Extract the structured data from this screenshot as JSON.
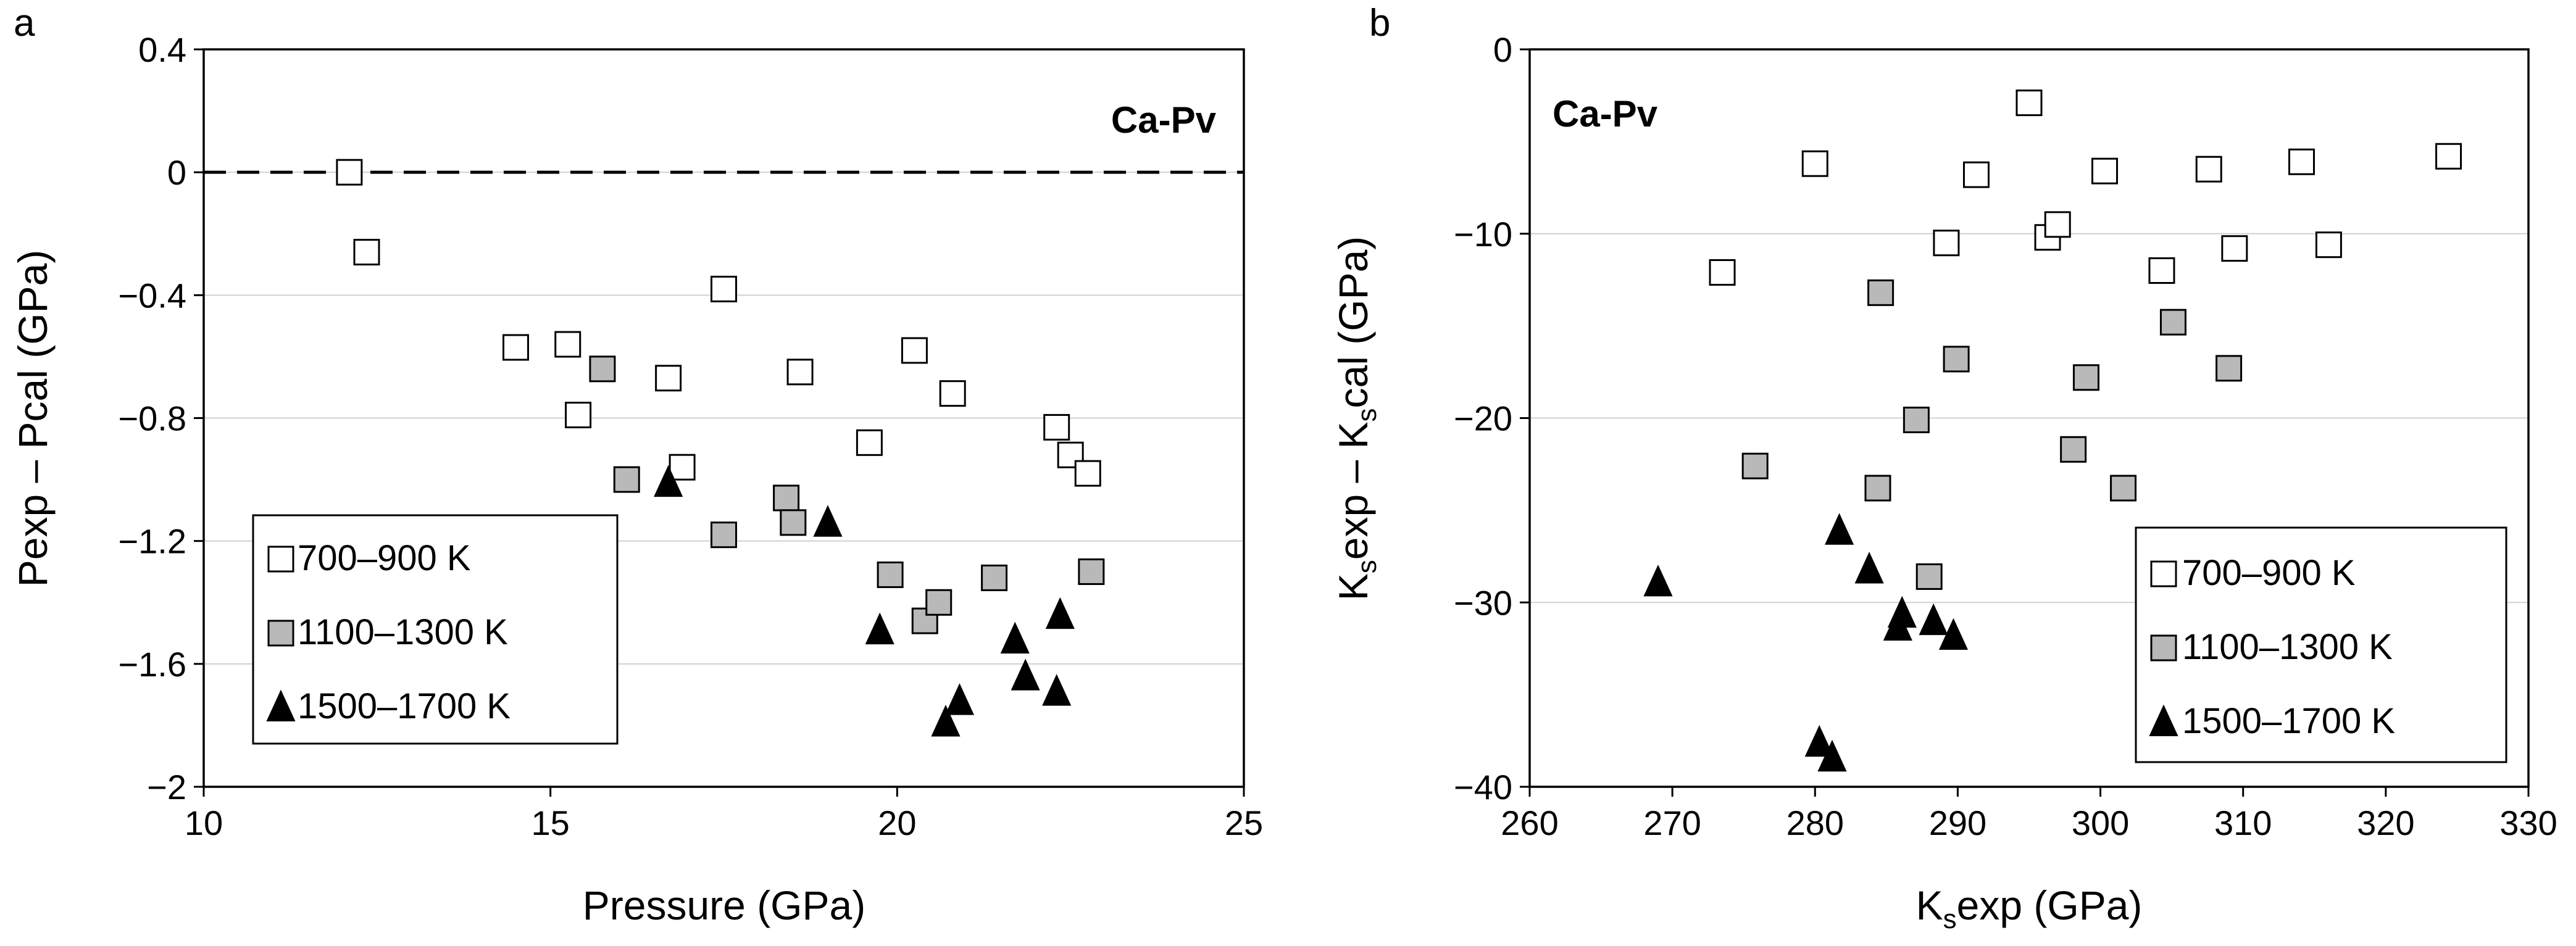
{
  "chart_data": [
    {
      "panel": "a",
      "type": "scatter",
      "title": "Ca-Pv",
      "xlabel": "Pressure (GPa)",
      "ylabel": "Pexp – Pcal (GPa)",
      "xlim": [
        10,
        25
      ],
      "ylim": [
        -2,
        0.4
      ],
      "xticks": [
        10,
        15,
        20,
        25
      ],
      "xtick_labels": [
        "10",
        "15",
        "20",
        "25"
      ],
      "yticks": [
        0.4,
        0,
        -0.4,
        -0.8,
        -1.2,
        -1.6,
        -2
      ],
      "ytick_labels": [
        "0.4",
        "0",
        "−0.4",
        "−0.8",
        "−1.2",
        "−1.6",
        "−2"
      ],
      "reference_line": {
        "y": 0,
        "style": "dashed"
      },
      "legend_position": "bottom-left",
      "series": [
        {
          "name": "700–900 K",
          "marker": "square-open",
          "points": [
            [
              12.1,
              0.0
            ],
            [
              12.35,
              -0.26
            ],
            [
              14.5,
              -0.57
            ],
            [
              15.25,
              -0.56
            ],
            [
              15.4,
              -0.79
            ],
            [
              16.7,
              -0.67
            ],
            [
              16.9,
              -0.96
            ],
            [
              17.5,
              -0.38
            ],
            [
              18.6,
              -0.65
            ],
            [
              19.6,
              -0.88
            ],
            [
              20.25,
              -0.58
            ],
            [
              20.8,
              -0.72
            ],
            [
              22.3,
              -0.83
            ],
            [
              22.5,
              -0.92
            ],
            [
              22.75,
              -0.98
            ]
          ]
        },
        {
          "name": "1100–1300 K",
          "marker": "square-gray",
          "points": [
            [
              15.75,
              -0.64
            ],
            [
              16.1,
              -1.0
            ],
            [
              17.5,
              -1.18
            ],
            [
              18.4,
              -1.06
            ],
            [
              18.5,
              -1.14
            ],
            [
              19.9,
              -1.31
            ],
            [
              20.4,
              -1.46
            ],
            [
              20.6,
              -1.4
            ],
            [
              21.4,
              -1.32
            ],
            [
              22.8,
              -1.3
            ]
          ]
        },
        {
          "name": "1500–1700 K",
          "marker": "triangle-black",
          "points": [
            [
              16.7,
              -1.01
            ],
            [
              19.0,
              -1.14
            ],
            [
              19.75,
              -1.49
            ],
            [
              20.7,
              -1.79
            ],
            [
              20.9,
              -1.72
            ],
            [
              21.7,
              -1.52
            ],
            [
              21.85,
              -1.64
            ],
            [
              22.3,
              -1.69
            ],
            [
              22.35,
              -1.44
            ]
          ]
        }
      ]
    },
    {
      "panel": "b",
      "type": "scatter",
      "title": "Ca-Pv",
      "xlabel_main": "K",
      "xlabel_sub": "s",
      "xlabel_rest": "exp (GPa)",
      "ylabel_k1": "K",
      "ylabel_s1": "s",
      "ylabel_mid": "exp – K",
      "ylabel_s2": "s",
      "ylabel_rest": "cal (GPa)",
      "xlim": [
        260,
        330
      ],
      "ylim": [
        -40,
        0
      ],
      "xticks": [
        260,
        270,
        280,
        290,
        300,
        310,
        320,
        330
      ],
      "xtick_labels": [
        "260",
        "270",
        "280",
        "290",
        "300",
        "310",
        "320",
        "330"
      ],
      "yticks": [
        0,
        -10,
        -20,
        -30,
        -40
      ],
      "ytick_labels": [
        "0",
        "−10",
        "−20",
        "−30",
        "−40"
      ],
      "legend_position": "bottom-right",
      "series": [
        {
          "name": "700–900 K",
          "marker": "square-open",
          "points": [
            [
              273.5,
              -12.1
            ],
            [
              280.0,
              -6.2
            ],
            [
              289.2,
              -10.5
            ],
            [
              291.3,
              -6.8
            ],
            [
              295.0,
              -2.9
            ],
            [
              296.3,
              -10.2
            ],
            [
              297.0,
              -9.5
            ],
            [
              300.3,
              -6.6
            ],
            [
              304.3,
              -12.0
            ],
            [
              307.6,
              -6.5
            ],
            [
              309.4,
              -10.8
            ],
            [
              314.1,
              -6.1
            ],
            [
              316.0,
              -10.6
            ],
            [
              324.4,
              -5.8
            ]
          ]
        },
        {
          "name": "1100–1300 K",
          "marker": "square-gray",
          "points": [
            [
              275.8,
              -22.6
            ],
            [
              284.4,
              -23.8
            ],
            [
              284.6,
              -13.2
            ],
            [
              287.1,
              -20.1
            ],
            [
              288.0,
              -28.6
            ],
            [
              289.9,
              -16.8
            ],
            [
              298.1,
              -21.7
            ],
            [
              299.0,
              -17.8
            ],
            [
              301.6,
              -23.8
            ],
            [
              305.1,
              -14.8
            ],
            [
              309.0,
              -17.3
            ]
          ]
        },
        {
          "name": "1500–1700 K",
          "marker": "triangle-black",
          "points": [
            [
              269.0,
              -28.9
            ],
            [
              280.3,
              -37.6
            ],
            [
              281.2,
              -38.4
            ],
            [
              281.7,
              -26.1
            ],
            [
              283.8,
              -28.2
            ],
            [
              285.8,
              -31.3
            ],
            [
              286.1,
              -30.6
            ],
            [
              288.3,
              -31.0
            ],
            [
              289.7,
              -31.8
            ]
          ]
        }
      ]
    }
  ]
}
